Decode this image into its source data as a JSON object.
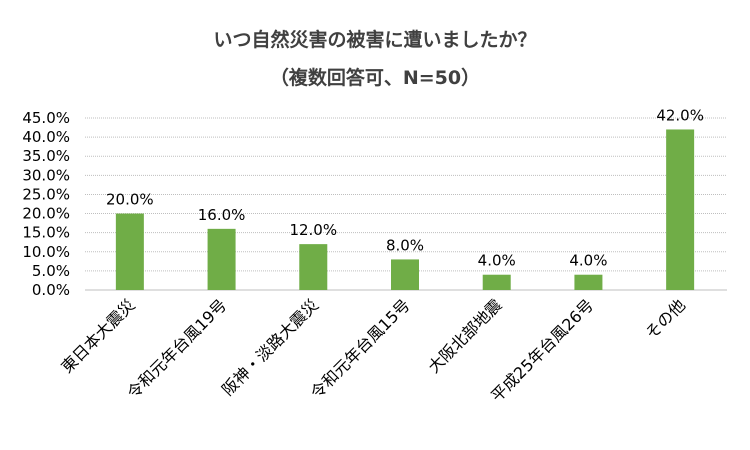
{
  "chart_data": {
    "type": "bar",
    "title": "いつ自然災害の被害に遭いましたか？",
    "subtitle": "（複数回答可、N=50）",
    "categories": [
      "東日本大震災",
      "令和元年台風19号",
      "阪神・淡路大震災",
      "令和元年台風15号",
      "大阪北部地震",
      "平成25年台風26号",
      "その他"
    ],
    "values": [
      20.0,
      16.0,
      12.0,
      8.0,
      4.0,
      4.0,
      42.0
    ],
    "data_labels": [
      "20.0%",
      "16.0%",
      "12.0%",
      "8.0%",
      "4.0%",
      "4.0%",
      "42.0%"
    ],
    "yticks": [
      "0.0%",
      "5.0%",
      "10.0%",
      "15.0%",
      "20.0%",
      "25.0%",
      "30.0%",
      "35.0%",
      "40.0%",
      "45.0%"
    ],
    "ylim": [
      0,
      45
    ],
    "xlabel": "",
    "ylabel": "",
    "grid": true,
    "bar_color": "#70AD47"
  }
}
